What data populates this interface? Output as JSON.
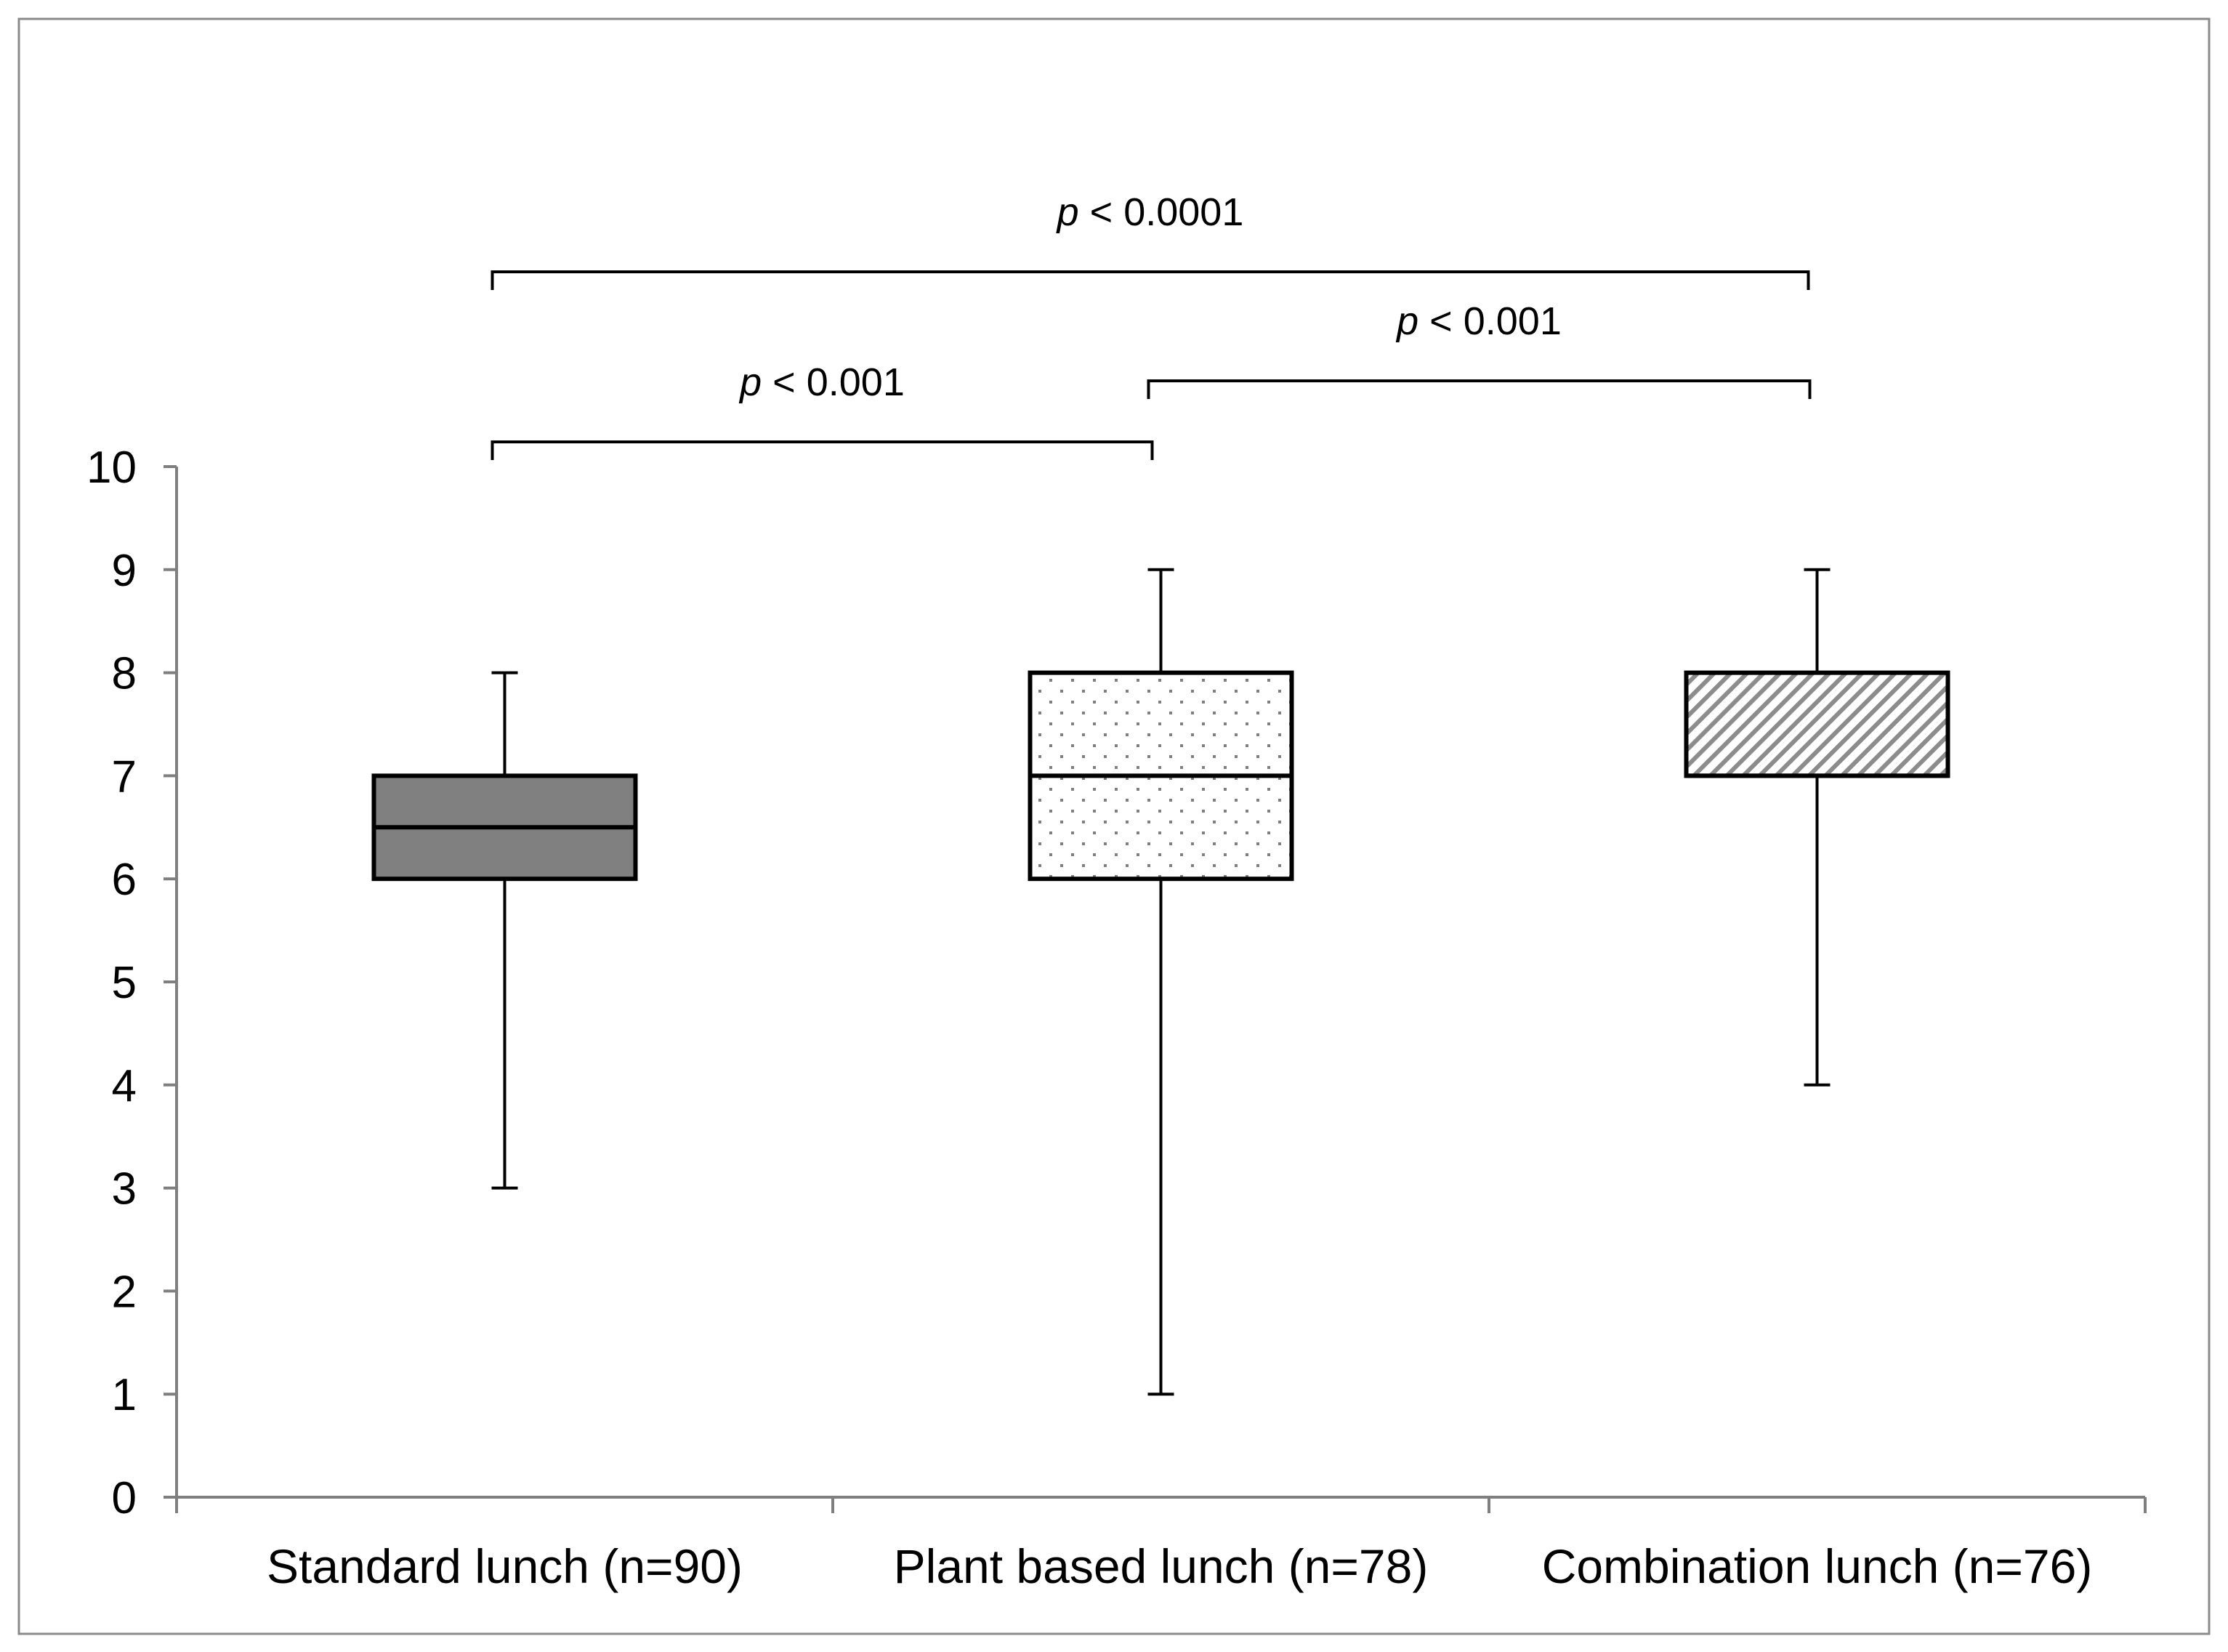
{
  "chart_data": {
    "type": "box",
    "y_axis": {
      "min": 0,
      "max": 10,
      "ticks": [
        "0",
        "1",
        "2",
        "3",
        "4",
        "5",
        "6",
        "7",
        "8",
        "9",
        "10"
      ]
    },
    "grid": false,
    "categories": [
      "Standard lunch (n=90)",
      "Plant based lunch (n=78)",
      "Combination lunch (n=76)"
    ],
    "boxes": [
      {
        "category": "Standard lunch (n=90)",
        "min": 3,
        "q1": 6,
        "median": 6.5,
        "q3": 7,
        "max": 8,
        "fill": "solid",
        "color": "#808080"
      },
      {
        "category": "Plant based lunch (n=78)",
        "min": 1,
        "q1": 6,
        "median": 7,
        "q3": 8,
        "max": 9,
        "fill": "dotted",
        "color": "#7f7f7f"
      },
      {
        "category": "Combination lunch (n=76)",
        "min": 4,
        "q1": 7,
        "median": 7,
        "q3": 8,
        "max": 9,
        "fill": "hatched",
        "color": "#7f7f7f"
      }
    ],
    "comparisons": [
      {
        "from": 0,
        "to": 1,
        "label_p": "p",
        "label_rest": " < 0.001"
      },
      {
        "from": 1,
        "to": 2,
        "label_p": "p",
        "label_rest": " < 0.001"
      },
      {
        "from": 0,
        "to": 2,
        "label_p": "p",
        "label_rest": " < 0.0001"
      }
    ]
  }
}
